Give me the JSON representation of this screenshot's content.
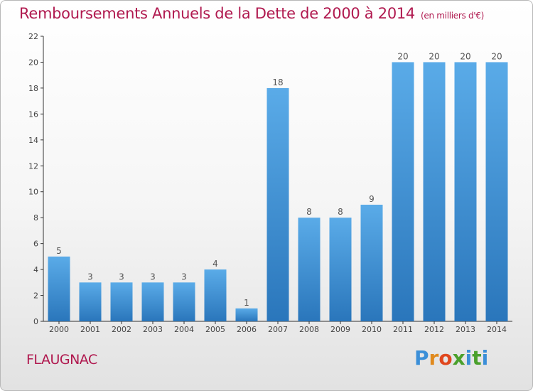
{
  "header": {
    "title": "Remboursements Annuels de la Dette de 2000 à 2014",
    "unit": "(en milliers d'€)"
  },
  "footer": {
    "commune": "FLAUGNAC",
    "logo_letters": [
      "P",
      "r",
      "o",
      "x",
      "i",
      "t",
      "i"
    ],
    "logo_colors": [
      "#3b8fd8",
      "#e08a1e",
      "#e0471e",
      "#4aa02c",
      "#3b8fd8",
      "#4aa02c",
      "#3b8fd8"
    ]
  },
  "colors": {
    "title": "#b0194f",
    "bar_light": "#5aabe8",
    "bar_dark": "#2a76bb",
    "axis": "#333333"
  },
  "chart_data": {
    "type": "bar",
    "categories": [
      "2000",
      "2001",
      "2002",
      "2003",
      "2004",
      "2005",
      "2006",
      "2007",
      "2008",
      "2009",
      "2010",
      "2011",
      "2012",
      "2013",
      "2014"
    ],
    "values": [
      5,
      3,
      3,
      3,
      3,
      4,
      1,
      18,
      8,
      8,
      9,
      20,
      20,
      20,
      20
    ],
    "title": "Remboursements Annuels de la Dette de 2000 à 2014",
    "ylim": [
      0,
      22
    ],
    "yticks": [
      0,
      2,
      4,
      6,
      8,
      10,
      12,
      14,
      16,
      18,
      20,
      22
    ],
    "grid": false,
    "data_labels": true
  }
}
